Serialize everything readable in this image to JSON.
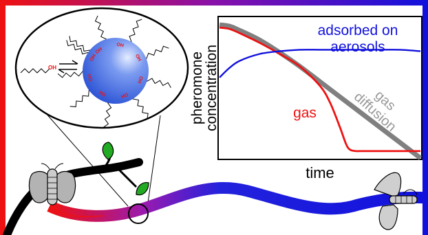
{
  "chart_data": {
    "type": "line",
    "xlabel": "time",
    "ylabel_line1": "pheromone",
    "ylabel_line2": "concentration",
    "xlim": [
      0,
      100
    ],
    "ylim": [
      0,
      100
    ],
    "series": [
      {
        "name": "gas diffusion",
        "label_line1": "gas",
        "label_line2": "diffusion",
        "color": "#808080",
        "x": [
          0,
          5,
          10,
          20,
          30,
          40,
          50,
          60,
          70,
          80,
          90,
          100
        ],
        "y": [
          96,
          95,
          92,
          85,
          76,
          66,
          55,
          44,
          33,
          22,
          11,
          0
        ]
      },
      {
        "name": "gas",
        "color": "#ee1111",
        "x": [
          0,
          5,
          10,
          20,
          30,
          40,
          50,
          55,
          60,
          63,
          65,
          68,
          70,
          80,
          90,
          100
        ],
        "y": [
          94,
          93,
          90,
          83,
          75,
          66,
          52,
          40,
          22,
          10,
          6,
          5,
          5,
          5,
          5,
          5
        ]
      },
      {
        "name": "adsorbed on aerosols",
        "label_line1": "adsorbed on",
        "label_line2": "aerosols",
        "color": "#1111dd",
        "x": [
          0,
          5,
          10,
          20,
          30,
          40,
          50,
          60,
          70,
          80,
          90,
          100
        ],
        "y": [
          58,
          65,
          70,
          75,
          77,
          78,
          78,
          78,
          78,
          78,
          78,
          77
        ]
      }
    ]
  },
  "zoom_inset": {
    "molecule_label": "OH",
    "sphere_labels": [
      "OH",
      "OH",
      "OH",
      "OH",
      "OH",
      "OH",
      "OH",
      "OH"
    ]
  },
  "colors": {
    "frame_red": "#ee1111",
    "frame_blue": "#1111dd",
    "leaf_green": "#22aa22",
    "sphere_blue": "#4a72e6"
  }
}
